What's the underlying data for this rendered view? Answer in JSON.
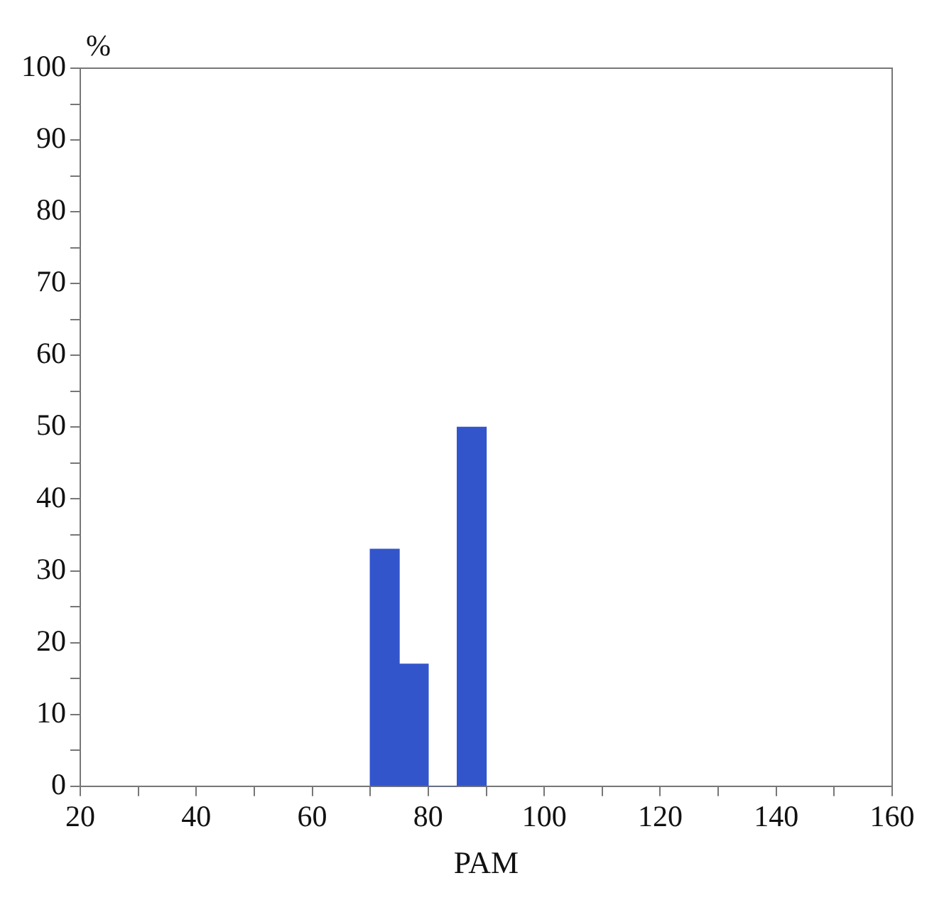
{
  "chart_data": {
    "type": "histogram",
    "xlabel": "PAM",
    "ylabel": "%",
    "bins": [
      70,
      75,
      80,
      85,
      90
    ],
    "values": [
      33,
      17,
      0,
      50
    ],
    "color": "#3355cc",
    "xlim": [
      20,
      160
    ],
    "xticks": [
      20,
      {
        "value": 30,
        "label": null
      },
      40,
      {
        "value": 50,
        "label": null
      },
      60,
      {
        "value": 70,
        "label": null
      },
      80,
      {
        "value": 90,
        "label": null
      },
      100,
      {
        "value": 110,
        "label": null
      },
      120,
      {
        "value": 130,
        "label": null
      },
      140,
      {
        "value": 150,
        "label": null
      },
      160
    ],
    "ylim": [
      0,
      100
    ],
    "yticks": [
      0,
      {
        "value": 5,
        "label": null
      },
      10,
      {
        "value": 15,
        "label": null
      },
      20,
      {
        "value": 25,
        "label": null
      },
      30,
      {
        "value": 35,
        "label": null
      },
      40,
      {
        "value": 45,
        "label": null
      },
      50,
      {
        "value": 55,
        "label": null
      },
      60,
      {
        "value": 65,
        "label": null
      },
      70,
      {
        "value": 75,
        "label": null
      },
      80,
      {
        "value": 85,
        "label": null
      },
      90,
      {
        "value": 95,
        "label": null
      },
      100
    ]
  }
}
